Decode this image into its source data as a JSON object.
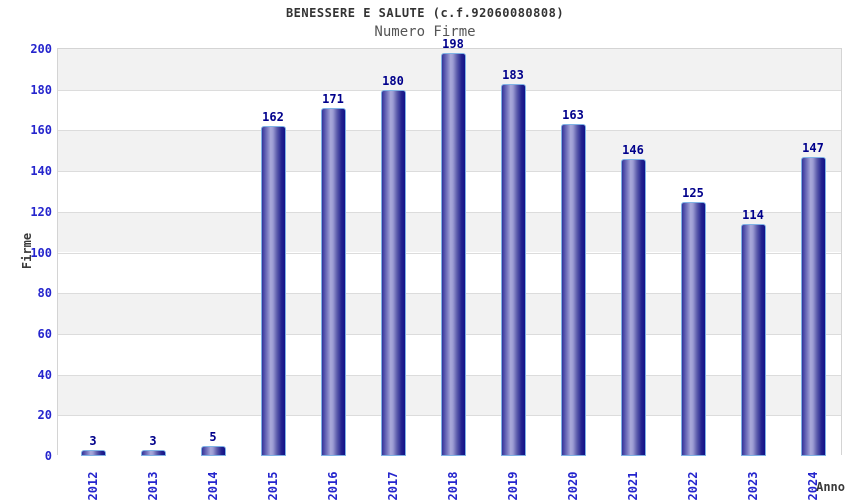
{
  "header": {
    "title": "BENESSERE E SALUTE (c.f.92060080808)",
    "subtitle": "Numero Firme"
  },
  "chart_data": {
    "type": "bar",
    "title": "BENESSERE E SALUTE (c.f.92060080808)",
    "subtitle": "Numero Firme",
    "categories": [
      "2012",
      "2013",
      "2014",
      "2015",
      "2016",
      "2017",
      "2018",
      "2019",
      "2020",
      "2021",
      "2022",
      "2023",
      "2024"
    ],
    "values": [
      3,
      3,
      5,
      162,
      171,
      180,
      198,
      183,
      163,
      146,
      125,
      114,
      147
    ],
    "xlabel": "Anno",
    "ylabel": "Firme",
    "ylim": [
      0,
      200
    ],
    "yticks": [
      0,
      20,
      40,
      60,
      80,
      100,
      120,
      140,
      160,
      180,
      200
    ],
    "grid": true,
    "legend": false,
    "colors": {
      "tick_label": "#2525cd",
      "value_label": "#00008b",
      "title": "#333333",
      "subtitle": "#555555",
      "axis_title": "#3a3a3a",
      "band_gray": "#f2f2f2",
      "band_white": "#ffffff",
      "gridline": "#dcdcdc",
      "bar_edge_dark": "#12128a",
      "bar_mid_light": "#a9a9da",
      "bar_border": "#7fb2e5"
    }
  }
}
